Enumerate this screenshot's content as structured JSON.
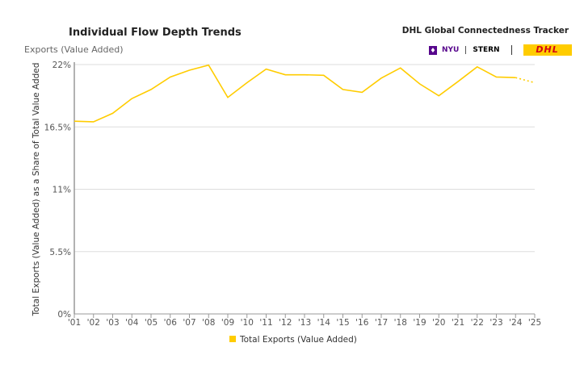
{
  "header": {
    "title": "Individual Flow Depth Trends",
    "subtitle": "Exports (Value Added)",
    "tracker": "DHL Global Connectedness Tracker",
    "nyu": "NYU",
    "stern": "STERN",
    "dhl": "DHL"
  },
  "colors": {
    "line": "#ffcc00",
    "grid": "#dddddd",
    "axis": "#999999",
    "text": "#555555"
  },
  "chart_data": {
    "type": "line",
    "title": "Individual Flow Depth Trends",
    "xlabel": "",
    "ylabel": "Total Exports (Value Added) as a Share of Total Value Added",
    "ylim": [
      0,
      22
    ],
    "yticks": [
      0,
      5.5,
      11,
      16.5,
      22
    ],
    "ytick_labels": [
      "0%",
      "5.5%",
      "11%",
      "16.5%",
      "22%"
    ],
    "categories": [
      "'01",
      "'02",
      "'03",
      "'04",
      "'05",
      "'06",
      "'07",
      "'08",
      "'09",
      "'10",
      "'11",
      "'12",
      "'13",
      "'14",
      "'15",
      "'16",
      "'17",
      "'18",
      "'19",
      "'20",
      "'21",
      "'22",
      "'23",
      "'24",
      "'25"
    ],
    "series": [
      {
        "name": "Total Exports (Value Added)",
        "values": [
          17.0,
          16.95,
          17.7,
          19.0,
          19.8,
          20.9,
          21.5,
          21.95,
          19.1,
          20.4,
          21.6,
          21.1,
          21.1,
          21.05,
          19.8,
          19.55,
          20.8,
          21.7,
          20.3,
          19.25,
          20.5,
          21.8,
          20.9,
          20.85,
          20.4
        ],
        "projected_from_index": 23
      }
    ],
    "grid": true,
    "legend": "bottom"
  }
}
